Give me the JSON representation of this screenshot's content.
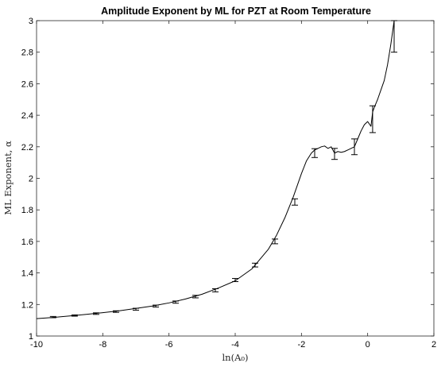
{
  "chart_data": {
    "type": "line",
    "title": "Amplitude Exponent by ML for PZT at Room Temperature",
    "xlabel": "ln(A₀)",
    "ylabel": "ML Exponent, α",
    "xlim": [
      -10,
      2
    ],
    "ylim": [
      1,
      3
    ],
    "xticks": [
      -10,
      -8,
      -6,
      -4,
      -2,
      0,
      2
    ],
    "yticks": [
      1,
      1.2,
      1.4,
      1.6,
      1.8,
      2,
      2.2,
      2.4,
      2.6,
      2.8,
      3
    ],
    "grid": false,
    "legend": "none",
    "series": [
      {
        "x": [
          -10.0,
          -9.5,
          -9.0,
          -8.5,
          -8.0,
          -7.5,
          -7.0,
          -6.5,
          -6.0,
          -5.5,
          -5.0,
          -4.5,
          -4.0,
          -3.5,
          -3.0,
          -2.75,
          -2.5,
          -2.25,
          -2.0,
          -1.85,
          -1.7,
          -1.6,
          -1.5,
          -1.4,
          -1.3,
          -1.2,
          -1.1,
          -1.0,
          -0.9,
          -0.8,
          -0.7,
          -0.6,
          -0.5,
          -0.4,
          -0.3,
          -0.2,
          -0.1,
          0.0,
          0.1,
          0.15,
          0.2,
          0.3,
          0.4,
          0.5,
          0.6,
          0.7,
          0.8
        ],
        "values": [
          1.11,
          1.118,
          1.127,
          1.137,
          1.148,
          1.16,
          1.175,
          1.19,
          1.21,
          1.235,
          1.265,
          1.305,
          1.35,
          1.425,
          1.55,
          1.64,
          1.75,
          1.88,
          2.03,
          2.11,
          2.16,
          2.18,
          2.19,
          2.2,
          2.205,
          2.19,
          2.2,
          2.16,
          2.17,
          2.165,
          2.17,
          2.18,
          2.19,
          2.2,
          2.25,
          2.3,
          2.34,
          2.36,
          2.33,
          2.42,
          2.45,
          2.5,
          2.56,
          2.62,
          2.72,
          2.85,
          3.0
        ]
      }
    ],
    "error_bars": {
      "x": [
        -9.5,
        -8.85,
        -8.2,
        -7.6,
        -7.0,
        -6.4,
        -5.8,
        -5.2,
        -4.6,
        -4.0,
        -3.4,
        -2.8,
        -2.2,
        -1.6,
        -1.0,
        -0.4,
        0.15,
        0.8
      ],
      "y": [
        1.12,
        1.13,
        1.142,
        1.155,
        1.17,
        1.19,
        1.215,
        1.25,
        1.29,
        1.355,
        1.45,
        1.6,
        1.85,
        2.16,
        2.155,
        2.2,
        2.375,
        2.9
      ],
      "err": [
        0.004,
        0.004,
        0.005,
        0.005,
        0.006,
        0.006,
        0.007,
        0.008,
        0.01,
        0.01,
        0.012,
        0.015,
        0.02,
        0.028,
        0.035,
        0.05,
        0.085,
        0.1
      ]
    }
  }
}
